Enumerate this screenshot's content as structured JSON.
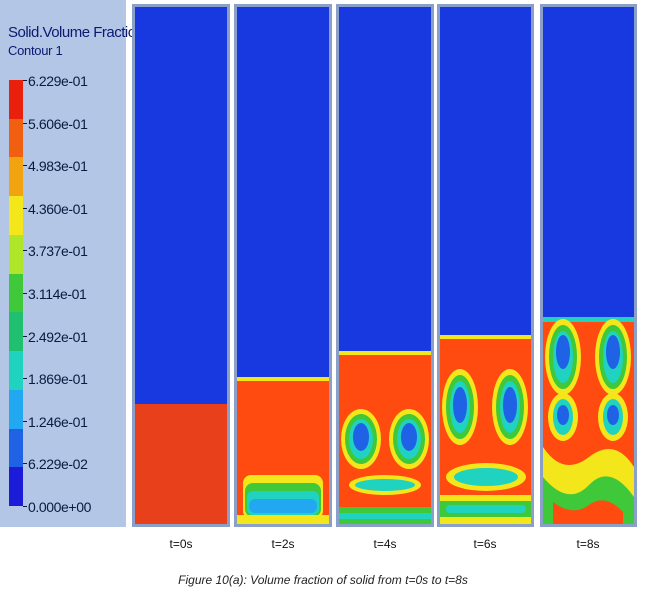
{
  "legend": {
    "title": "Solid.Volume Fraction",
    "subtitle": "Contour 1",
    "labels": [
      "6.229e-01",
      "5.606e-01",
      "4.983e-01",
      "4.360e-01",
      "3.737e-01",
      "3.114e-01",
      "2.492e-01",
      "1.869e-01",
      "1.246e-01",
      "6.229e-02",
      "0.000e+00"
    ],
    "colors": [
      "#e8200c",
      "#f06010",
      "#f2a410",
      "#f3e61a",
      "#b0e62a",
      "#3ec83a",
      "#20c070",
      "#20d2c0",
      "#22a8f0",
      "#1f62e6",
      "#1c1cd8"
    ]
  },
  "palette": {
    "gas": "#1838e0",
    "solid": "#ff4a10",
    "frame": "#8aa0c8"
  },
  "panels": [
    {
      "label": "t=0s",
      "bed_height_fraction": 0.255
    },
    {
      "label": "t=2s",
      "bed_height_fraction": 0.28
    },
    {
      "label": "t=4s",
      "bed_height_fraction": 0.33
    },
    {
      "label": "t=6s",
      "bed_height_fraction": 0.36
    },
    {
      "label": "t=8s",
      "bed_height_fraction": 0.39
    }
  ],
  "caption": "Figure 10(a): Volume fraction of solid from t=0s to t=8s"
}
